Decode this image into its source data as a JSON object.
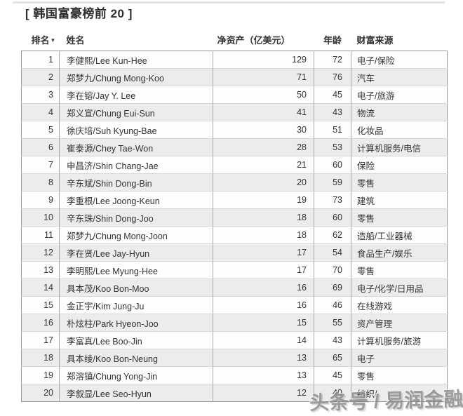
{
  "page": {
    "title": "[ 韩国富豪榜前 20 ]",
    "watermark": "头条号 / 易润金融"
  },
  "chart_data": {
    "type": "table",
    "title": "韩国富豪榜前 20",
    "columns": [
      "排名",
      "姓名",
      "净资产（亿美元）",
      "年龄",
      "财富来源"
    ],
    "sorted_by": "排名",
    "sort_icon": "▼",
    "rows": [
      [
        1,
        "李健熙/Lee Kun-Hee",
        129,
        72,
        "电子/保险"
      ],
      [
        2,
        "郑梦九/Chung Mong-Koo",
        71,
        76,
        "汽车"
      ],
      [
        3,
        "李在镕/Jay Y. Lee",
        50,
        45,
        "电子/旅游"
      ],
      [
        4,
        "郑义宣/Chung Eui-Sun",
        41,
        43,
        "物流"
      ],
      [
        5,
        "徐庆培/Suh Kyung-Bae",
        30,
        51,
        "化妆品"
      ],
      [
        6,
        "崔泰源/Chey Tae-Won",
        28,
        53,
        "计算机服务/电信"
      ],
      [
        7,
        "申昌济/Shin Chang-Jae",
        21,
        60,
        "保险"
      ],
      [
        8,
        "辛东斌/Shin Dong-Bin",
        20,
        59,
        "零售"
      ],
      [
        9,
        "李重根/Lee Joong-Keun",
        19,
        73,
        "建筑"
      ],
      [
        10,
        "辛东珠/Shin Dong-Joo",
        18,
        60,
        "零售"
      ],
      [
        11,
        "郑梦九/Chung Mong-Joon",
        18,
        62,
        "造船/工业器械"
      ],
      [
        12,
        "李在贤/Lee Jay-Hyun",
        17,
        54,
        "食品生产/娱乐"
      ],
      [
        13,
        "李明熙/Lee Myung-Hee",
        17,
        70,
        "零售"
      ],
      [
        14,
        "具本茂/Koo Bon-Moo",
        16,
        69,
        "电子/化学/日用品"
      ],
      [
        15,
        "金正宇/Kim Jung-Ju",
        16,
        46,
        "在线游戏"
      ],
      [
        16,
        "朴炫柱/Park Hyeon-Joo",
        15,
        55,
        "资产管理"
      ],
      [
        17,
        "李富真/Lee Boo-Jin",
        14,
        43,
        "计算机服务/旅游"
      ],
      [
        18,
        "具本绫/Koo Bon-Neung",
        13,
        65,
        "电子"
      ],
      [
        19,
        "郑溶镇/Chung Yong-Jin",
        13,
        45,
        "零售"
      ],
      [
        20,
        "李叙显/Lee Seo-Hyun",
        12,
        40,
        "纺织/"
      ]
    ]
  },
  "colors": {
    "row_alt_background": "#ececec",
    "outer_border": "#999999",
    "column_divider": "#aaaaaa",
    "row_divider": "#d8d8d8",
    "text": "#333333",
    "watermark_gray": "#8d8d8d"
  }
}
